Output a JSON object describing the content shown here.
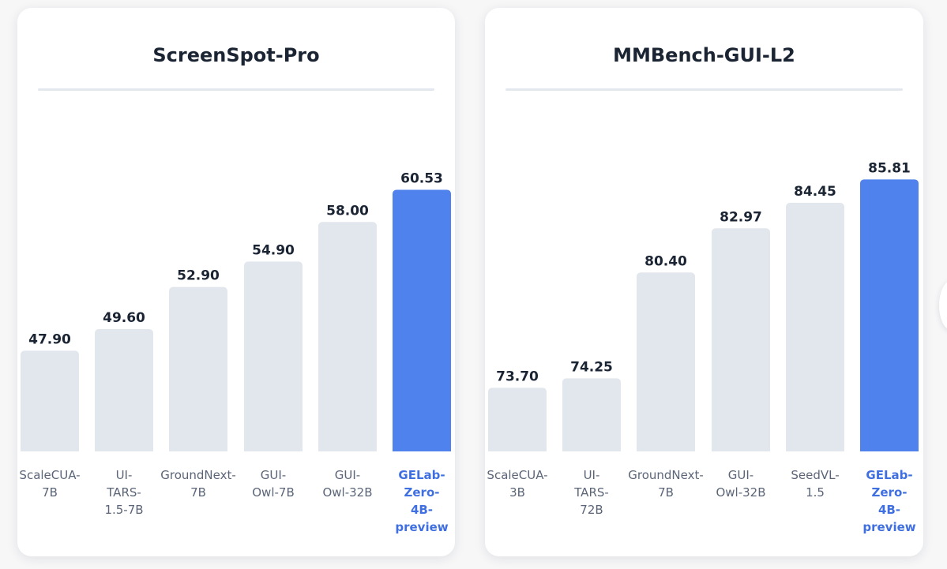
{
  "colors": {
    "bar_default": "#e2e6ed",
    "bar_highlight": "#4f82ec",
    "label_default": "#5b6577",
    "label_highlight": "#3f6fe0",
    "value_text": "#1b2433"
  },
  "chart_data": [
    {
      "type": "bar",
      "title": "ScreenSpot-Pro",
      "xlabel": "",
      "ylabel": "",
      "grid": false,
      "ylim": [
        40,
        64
      ],
      "categories": [
        "ScaleCUA-7B",
        "UI-TARS-1.5-7B",
        "GroundNext-7B",
        "GUI-Owl-7B",
        "GUI-Owl-32B",
        "GELab-Zero-4B-preview"
      ],
      "category_display": [
        "ScaleCUA-\n7B",
        "UI-\nTARS-\n1.5-7B",
        "GroundNext-\n7B",
        "GUI-\nOwl-7B",
        "GUI-\nOwl-32B",
        "GELab-\nZero-\n4B-\npreview"
      ],
      "values": [
        47.9,
        49.6,
        52.9,
        54.9,
        58.0,
        60.53
      ],
      "value_labels": [
        "47.90",
        "49.60",
        "52.90",
        "54.90",
        "58.00",
        "60.53"
      ],
      "highlight_index": 5
    },
    {
      "type": "bar",
      "title": "MMBench-GUI-L2",
      "xlabel": "",
      "ylabel": "",
      "grid": false,
      "ylim": [
        70,
        87.5
      ],
      "categories": [
        "ScaleCUA-3B",
        "UI-TARS-72B",
        "GroundNext-7B",
        "GUI-Owl-32B",
        "SeedVL-1.5",
        "GELab-Zero-4B-preview"
      ],
      "category_display": [
        "ScaleCUA-\n3B",
        "UI-\nTARS-\n72B",
        "GroundNext-\n7B",
        "GUI-\nOwl-32B",
        "SeedVL-\n1.5",
        "GELab-\nZero-\n4B-\npreview"
      ],
      "values": [
        73.7,
        74.25,
        80.4,
        82.97,
        84.45,
        85.81
      ],
      "value_labels": [
        "73.70",
        "74.25",
        "80.40",
        "82.97",
        "84.45",
        "85.81"
      ],
      "highlight_index": 5
    }
  ]
}
